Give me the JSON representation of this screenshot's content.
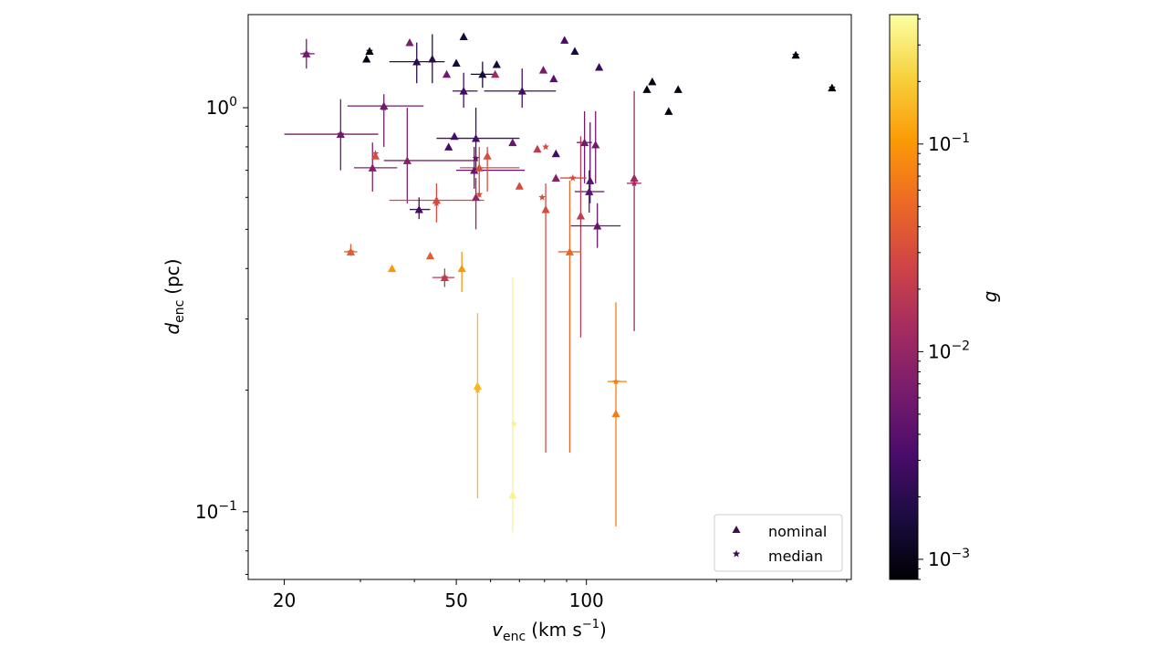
{
  "chart_data": {
    "type": "scatter",
    "xscale": "log",
    "yscale": "log",
    "xlim": [
      16.5,
      410
    ],
    "ylim": [
      0.068,
      1.7
    ],
    "xlabel": {
      "main": "v",
      "sub": "enc",
      "unit": "(km s",
      "unit_sup": "−1",
      "unit_close": ")"
    },
    "ylabel": {
      "main": "d",
      "sub": "enc",
      "unit": "(pc)"
    },
    "x_ticks": [
      {
        "value": 20,
        "label": "20"
      },
      {
        "value": 50,
        "label": "50"
      },
      {
        "value": 100,
        "label": "100"
      }
    ],
    "y_ticks": [
      {
        "value": 0.1,
        "label": "10",
        "sup": "−1"
      },
      {
        "value": 1.0,
        "label": "10",
        "sup": "0"
      }
    ],
    "colorbar": {
      "label": "g",
      "scale": "log",
      "range": [
        0.0008,
        0.42
      ],
      "ticks": [
        {
          "value": 0.001,
          "label": "10",
          "sup": "−3"
        },
        {
          "value": 0.01,
          "label": "10",
          "sup": "−2"
        },
        {
          "value": 0.1,
          "label": "10",
          "sup": "−1"
        }
      ],
      "colormap": [
        "#000004",
        "#1b0c41",
        "#4a0c6b",
        "#781c6d",
        "#a52c60",
        "#cf4446",
        "#ed6925",
        "#fb9b06",
        "#f7d13d",
        "#fcffa4"
      ]
    },
    "legend": {
      "position": "lower right",
      "entries": [
        {
          "marker": "triangle",
          "label": "nominal"
        },
        {
          "marker": "star",
          "label": "median"
        }
      ]
    },
    "nominal": [
      {
        "v": 22.5,
        "d": 1.36,
        "g": 0.006,
        "xerr": [
          21.8,
          23.5
        ],
        "yerr": [
          1.25,
          1.48
        ]
      },
      {
        "v": 31.5,
        "d": 1.38,
        "g": 0.0009
      },
      {
        "v": 31.0,
        "d": 1.32,
        "g": 0.0009
      },
      {
        "v": 39.0,
        "d": 1.45,
        "g": 0.007
      },
      {
        "v": 40.5,
        "d": 1.3,
        "g": 0.002,
        "xerr": [
          35.0,
          47.0
        ],
        "yerr": [
          1.15,
          1.45
        ]
      },
      {
        "v": 44.0,
        "d": 1.32,
        "g": 0.002,
        "yerr": [
          1.15,
          1.52
        ]
      },
      {
        "v": 52.0,
        "d": 1.5,
        "g": 0.0015
      },
      {
        "v": 50.0,
        "d": 1.29,
        "g": 0.0015
      },
      {
        "v": 47.5,
        "d": 1.21,
        "g": 0.006
      },
      {
        "v": 52.0,
        "d": 1.1,
        "g": 0.003,
        "xerr": [
          49.0,
          56.0
        ],
        "yerr": [
          1.0,
          1.22
        ]
      },
      {
        "v": 57.5,
        "d": 1.21,
        "g": 0.0015,
        "xerr": [
          54.0,
          62.0
        ],
        "yerr": [
          1.12,
          1.3
        ]
      },
      {
        "v": 62.0,
        "d": 1.28,
        "g": 0.0015
      },
      {
        "v": 61.5,
        "d": 1.21,
        "g": 0.012
      },
      {
        "v": 71.0,
        "d": 1.1,
        "g": 0.003,
        "xerr": [
          58.0,
          85.0
        ],
        "yerr": [
          1.0,
          1.25
        ]
      },
      {
        "v": 79.5,
        "d": 1.24,
        "g": 0.006
      },
      {
        "v": 84.0,
        "d": 1.18,
        "g": 0.004
      },
      {
        "v": 89.0,
        "d": 1.47,
        "g": 0.003
      },
      {
        "v": 94.0,
        "d": 1.38,
        "g": 0.0015
      },
      {
        "v": 107.0,
        "d": 1.26,
        "g": 0.0025
      },
      {
        "v": 138.0,
        "d": 1.11,
        "g": 0.0009
      },
      {
        "v": 142.0,
        "d": 1.16,
        "g": 0.0009
      },
      {
        "v": 155.0,
        "d": 0.98,
        "g": 0.0009
      },
      {
        "v": 163.0,
        "d": 1.11,
        "g": 0.0009
      },
      {
        "v": 305.0,
        "d": 1.35,
        "g": 0.0009
      },
      {
        "v": 370.0,
        "d": 1.12,
        "g": 0.0009
      },
      {
        "v": 34.0,
        "d": 1.01,
        "g": 0.006,
        "xerr": [
          28.0,
          42.0
        ],
        "yerr": [
          0.8,
          1.08
        ]
      },
      {
        "v": 27.0,
        "d": 0.86,
        "g": 0.006,
        "xerr": [
          20.0,
          33.0
        ],
        "yerr": [
          0.7,
          1.05
        ]
      },
      {
        "v": 48.0,
        "d": 0.8,
        "g": 0.003
      },
      {
        "v": 49.5,
        "d": 0.85,
        "g": 0.003
      },
      {
        "v": 55.5,
        "d": 0.84,
        "g": 0.003,
        "xerr": [
          45.0,
          70.0
        ],
        "yerr": [
          0.7,
          1.0
        ]
      },
      {
        "v": 67.5,
        "d": 0.82,
        "g": 0.005
      },
      {
        "v": 85.0,
        "d": 0.77,
        "g": 0.003
      },
      {
        "v": 77.0,
        "d": 0.79,
        "g": 0.02
      },
      {
        "v": 99.0,
        "d": 0.82,
        "g": 0.006,
        "xerr": [
          95.0,
          103.0
        ],
        "yerr": [
          0.65,
          0.98
        ]
      },
      {
        "v": 105.0,
        "d": 0.81,
        "g": 0.006,
        "yerr": [
          0.65,
          0.98
        ]
      },
      {
        "v": 32.5,
        "d": 0.76,
        "g": 0.03
      },
      {
        "v": 32.0,
        "d": 0.71,
        "g": 0.008,
        "xerr": [
          29.0,
          36.5
        ],
        "yerr": [
          0.62,
          0.82
        ]
      },
      {
        "v": 38.5,
        "d": 0.74,
        "g": 0.008,
        "xerr": [
          34.0,
          56.0
        ],
        "yerr": [
          0.58,
          1.0
        ]
      },
      {
        "v": 55.0,
        "d": 0.7,
        "g": 0.005,
        "xerr": [
          50.0,
          72.0
        ],
        "yerr": [
          0.63,
          0.8
        ]
      },
      {
        "v": 56.5,
        "d": 0.71,
        "g": 0.03,
        "xerr": [
          51.0,
          70.0
        ],
        "yerr": [
          0.6,
          0.8
        ]
      },
      {
        "v": 59.0,
        "d": 0.76,
        "g": 0.03,
        "yerr": [
          0.62,
          0.8
        ]
      },
      {
        "v": 85.0,
        "d": 0.67,
        "g": 0.008
      },
      {
        "v": 70.0,
        "d": 0.64,
        "g": 0.03
      },
      {
        "v": 102.0,
        "d": 0.66,
        "g": 0.004,
        "yerr": [
          0.58,
          0.92
        ]
      },
      {
        "v": 101.5,
        "d": 0.62,
        "g": 0.004,
        "xerr": [
          94.0,
          110.0
        ],
        "yerr": [
          0.55,
          0.7
        ]
      },
      {
        "v": 129.0,
        "d": 0.67,
        "g": 0.012,
        "yerr": [
          0.28,
          1.1
        ]
      },
      {
        "v": 45.0,
        "d": 0.59,
        "g": 0.03,
        "xerr": [
          35.0,
          58.0
        ],
        "yerr": [
          0.52,
          0.65
        ]
      },
      {
        "v": 55.5,
        "d": 0.6,
        "g": 0.01,
        "yerr": [
          0.5,
          0.67
        ]
      },
      {
        "v": 41.0,
        "d": 0.56,
        "g": 0.003,
        "xerr": [
          39.0,
          43.5
        ],
        "yerr": [
          0.53,
          0.6
        ]
      },
      {
        "v": 80.5,
        "d": 0.56,
        "g": 0.03,
        "yerr": [
          0.14,
          0.65
        ]
      },
      {
        "v": 97.0,
        "d": 0.54,
        "g": 0.02,
        "yerr": [
          0.27,
          0.85
        ]
      },
      {
        "v": 106.0,
        "d": 0.51,
        "g": 0.005,
        "xerr": [
          92.0,
          120.0
        ],
        "yerr": [
          0.45,
          0.58
        ]
      },
      {
        "v": 28.5,
        "d": 0.44,
        "g": 0.04,
        "xerr": [
          27.5,
          29.5
        ],
        "yerr": [
          0.43,
          0.46
        ]
      },
      {
        "v": 43.5,
        "d": 0.43,
        "g": 0.04
      },
      {
        "v": 35.5,
        "d": 0.4,
        "g": 0.1
      },
      {
        "v": 51.5,
        "d": 0.4,
        "g": 0.1,
        "yerr": [
          0.35,
          0.44
        ]
      },
      {
        "v": 47.0,
        "d": 0.38,
        "g": 0.02,
        "xerr": [
          44.0,
          49.5
        ],
        "yerr": [
          0.36,
          0.4
        ]
      },
      {
        "v": 91.5,
        "d": 0.44,
        "g": 0.05,
        "xerr": [
          86.0,
          97.0
        ],
        "yerr": [
          0.14,
          0.66
        ]
      },
      {
        "v": 56.0,
        "d": 0.205,
        "g": 0.15,
        "yerr": [
          0.108,
          0.31
        ]
      },
      {
        "v": 67.5,
        "d": 0.11,
        "g": 0.35,
        "yerr": [
          0.089,
          0.38
        ]
      },
      {
        "v": 117.0,
        "d": 0.175,
        "g": 0.07,
        "yerr": [
          0.092,
          0.33
        ]
      }
    ],
    "median": [
      {
        "v": 22.5,
        "d": 1.36,
        "g": 0.006
      },
      {
        "v": 31.5,
        "d": 1.38,
        "g": 0.0009
      },
      {
        "v": 305.0,
        "d": 1.35,
        "g": 0.0009
      },
      {
        "v": 370.0,
        "d": 1.12,
        "g": 0.0009
      },
      {
        "v": 34.0,
        "d": 1.0,
        "g": 0.006
      },
      {
        "v": 27.0,
        "d": 0.86,
        "g": 0.006
      },
      {
        "v": 32.5,
        "d": 0.77,
        "g": 0.03
      },
      {
        "v": 80.5,
        "d": 0.8,
        "g": 0.03
      },
      {
        "v": 55.5,
        "d": 0.75,
        "g": 0.005
      },
      {
        "v": 93.0,
        "d": 0.67,
        "g": 0.03,
        "xerr": [
          87.0,
          100.0
        ]
      },
      {
        "v": 129.0,
        "d": 0.65,
        "g": 0.012,
        "xerr": [
          124.0,
          134.0
        ]
      },
      {
        "v": 79.0,
        "d": 0.6,
        "g": 0.03
      },
      {
        "v": 56.5,
        "d": 0.61,
        "g": 0.03
      },
      {
        "v": 45.0,
        "d": 0.58,
        "g": 0.03
      },
      {
        "v": 28.5,
        "d": 0.44,
        "g": 0.04
      },
      {
        "v": 47.0,
        "d": 0.38,
        "g": 0.02
      },
      {
        "v": 56.0,
        "d": 0.2,
        "g": 0.15
      },
      {
        "v": 68.0,
        "d": 0.165,
        "g": 0.35
      },
      {
        "v": 117.0,
        "d": 0.21,
        "g": 0.07,
        "xerr": [
          112.0,
          124.0
        ]
      }
    ]
  }
}
